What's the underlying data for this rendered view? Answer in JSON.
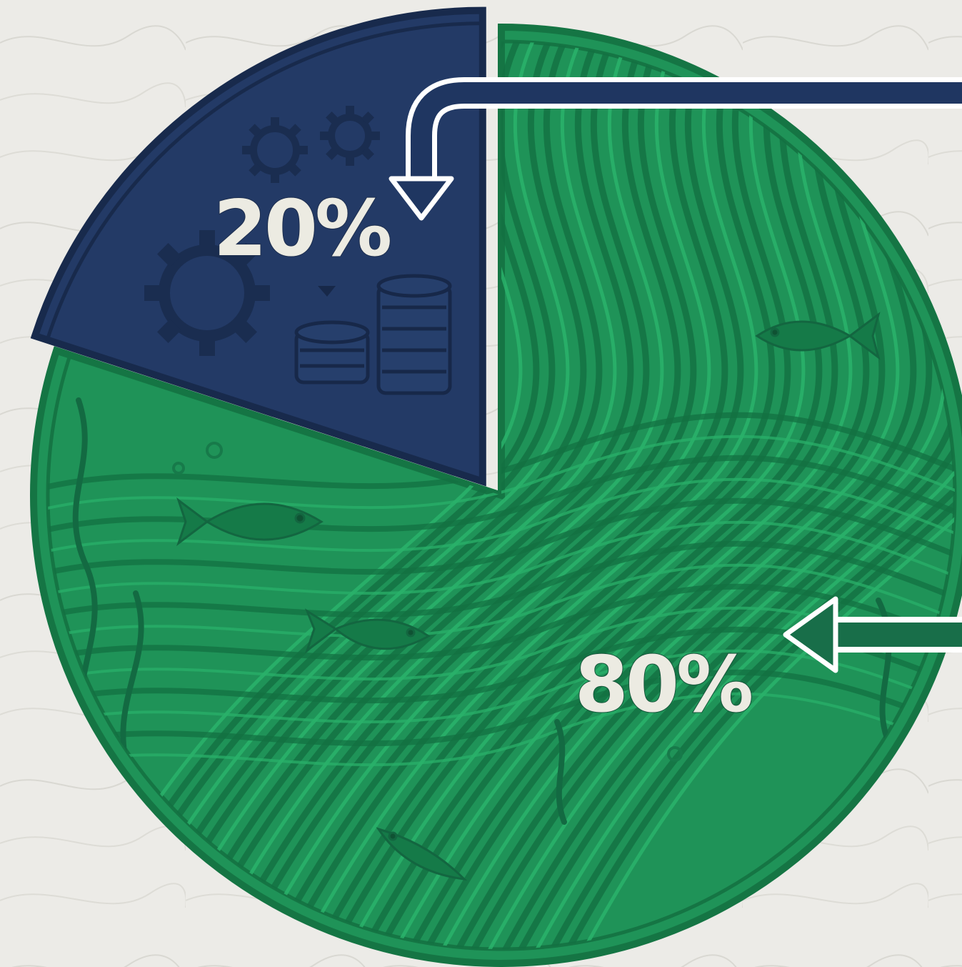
{
  "chart_data": {
    "type": "pie",
    "title": "",
    "slices": [
      {
        "label": "20%",
        "value": 20,
        "color": "#233a66"
      },
      {
        "label": "80%",
        "value": 80,
        "color": "#1f9358"
      }
    ]
  },
  "colors": {
    "background": "#ecebe7",
    "navy": "#233a66",
    "navy_dark": "#182a4c",
    "green": "#1f9358",
    "green_dark": "#157544",
    "arrow_navy": "#1f3661",
    "arrow_green": "#186e49"
  },
  "icons": [
    "gear-icon",
    "coin-stack-icon",
    "fish-icon",
    "seaweed-icon",
    "river-wave-pattern"
  ]
}
